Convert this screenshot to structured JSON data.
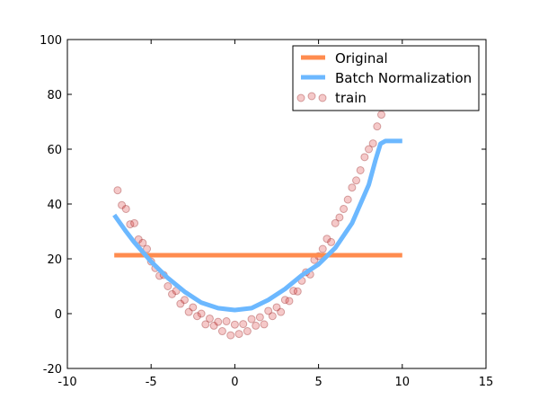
{
  "chart_data": {
    "type": "line",
    "title": "",
    "xlabel": "",
    "ylabel": "",
    "xlim": [
      -10,
      15
    ],
    "ylim": [
      -20,
      100
    ],
    "xticks": [
      -10,
      -5,
      0,
      5,
      10,
      15
    ],
    "yticks": [
      -20,
      0,
      20,
      40,
      60,
      80,
      100
    ],
    "grid": false,
    "legend_position": "top-right",
    "series": [
      {
        "name": "Original",
        "type": "line",
        "color": "#ff8c4f",
        "x": [
          -7.2,
          10
        ],
        "y": [
          21.3,
          21.3
        ]
      },
      {
        "name": "Batch Normalization",
        "type": "line",
        "color": "#6cb8ff",
        "x": [
          -7.2,
          -6.5,
          -6,
          -5,
          -4,
          -3,
          -2,
          -1,
          0,
          1,
          2,
          3,
          4,
          5,
          6,
          7,
          7.5,
          8,
          8.4,
          8.7,
          9,
          10
        ],
        "y": [
          36,
          30,
          26,
          19,
          13,
          8,
          4,
          2,
          1.3,
          2,
          5,
          9,
          14,
          18,
          24,
          33,
          40,
          47,
          56,
          62,
          63,
          63
        ]
      },
      {
        "name": "train",
        "type": "scatter",
        "color": "#d62728",
        "x": [
          -7,
          -6.75,
          -6.5,
          -6.25,
          -6,
          -5.75,
          -5.5,
          -5.25,
          -5,
          -4.75,
          -4.5,
          -4.25,
          -4,
          -3.75,
          -3.5,
          -3.25,
          -3,
          -2.75,
          -2.5,
          -2.25,
          -2,
          -1.75,
          -1.5,
          -1.25,
          -1,
          -0.75,
          -0.5,
          -0.25,
          0,
          0.25,
          0.5,
          0.75,
          1,
          1.25,
          1.5,
          1.75,
          2,
          2.25,
          2.5,
          2.75,
          3,
          3.25,
          3.5,
          3.75,
          4,
          4.25,
          4.5,
          4.75,
          5,
          5.25,
          5.5,
          5.75,
          6,
          6.25,
          6.5,
          6.75,
          7,
          7.25,
          7.5,
          7.75,
          8,
          8.25,
          8.5,
          8.75,
          9,
          9.25,
          9.5,
          9.75,
          10
        ],
        "y": [
          45,
          39.6,
          38.2,
          32.6,
          33,
          27.1,
          25.8,
          23.6,
          19,
          16.6,
          13.8,
          14.1,
          10,
          7.1,
          8.3,
          3.6,
          5,
          0.6,
          2.3,
          -0.9,
          0,
          -3.9,
          -1.8,
          -4.4,
          -3,
          -6.4,
          -2.8,
          -7.9,
          -4,
          -7.4,
          -3.8,
          -6.4,
          -2,
          -4.4,
          -1.3,
          -3.9,
          1,
          -0.9,
          2.3,
          0.6,
          5,
          4.6,
          8.3,
          8.1,
          12,
          15.1,
          14.3,
          19.6,
          21,
          23.6,
          27.3,
          26.1,
          33,
          35.1,
          38.2,
          41.6,
          46,
          48.6,
          52.3,
          57.1,
          60,
          62.1,
          68.3,
          72.6,
          77,
          79.6,
          86.3,
          89.1,
          95
        ]
      }
    ]
  }
}
